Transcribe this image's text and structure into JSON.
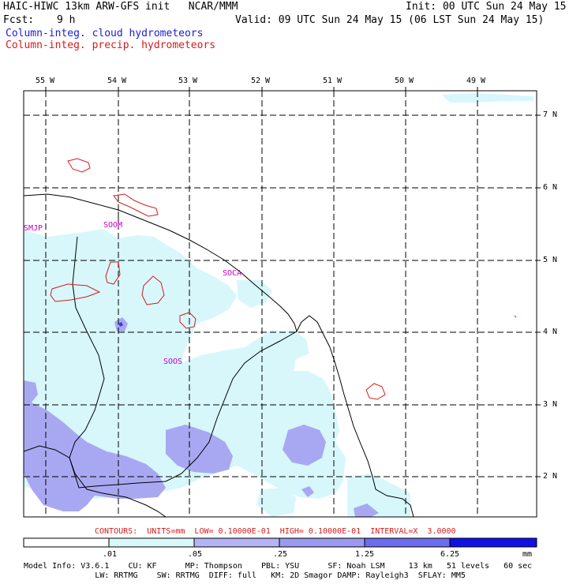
{
  "header": {
    "title_left": "HAIC-HIWC 13km ARW-GFS init   NCAR/MMM",
    "init": "Init: 00 UTC Sun 24 May 15",
    "fcst_label": "Fcst:",
    "fcst_value": "9 h",
    "valid": "Valid: 09 UTC Sun 24 May 15 (06 LST Sun 24 May 15)",
    "legend_cloud": "Column-integ. cloud hydrometeors",
    "legend_precip": "Column-integ. precip. hydrometeors"
  },
  "axes": {
    "lon_labels": [
      "55 W",
      "54 W",
      "53 W",
      "52 W",
      "51 W",
      "50 W",
      "49 W"
    ],
    "lat_labels": [
      "7 N",
      "6 N",
      "5 N",
      "4 N",
      "3 N",
      "2 N"
    ]
  },
  "stations": [
    "SMJP",
    "SOOM",
    "SOCA",
    "SOOS"
  ],
  "contours_text": "CONTOURS:  UNITS=mm  LOW= 0.10000E-01  HIGH= 0.10000E-01  INTERVAL=X  3.0000",
  "colorbar": {
    "ticks": [
      ".01",
      ".05",
      ".25",
      "1.25",
      "6.25"
    ],
    "unit": "mm",
    "colors": [
      "#ffffff",
      "#d7f7fb",
      "#b4b4f6",
      "#9a9af0",
      "#6c6cee",
      "#3a3aea",
      "#1212e6"
    ]
  },
  "footer": {
    "line1": "Model Info: V3.6.1    CU: KF      MP: Thompson    PBL: YSU      SF: Noah LSM     13 km   51 levels   60 sec",
    "line2": "               LW: RRTMG    SW: RRTMG  DIFF: full   KM: 2D Smagor DAMP: Rayleigh3  SFLAY: MM5"
  },
  "colors": {
    "cloud_light": "#d7f7fb",
    "cloud_mid": "#a8a8f2",
    "cloud_dark": "#2828e0",
    "precip_contour": "#d41c1c"
  }
}
